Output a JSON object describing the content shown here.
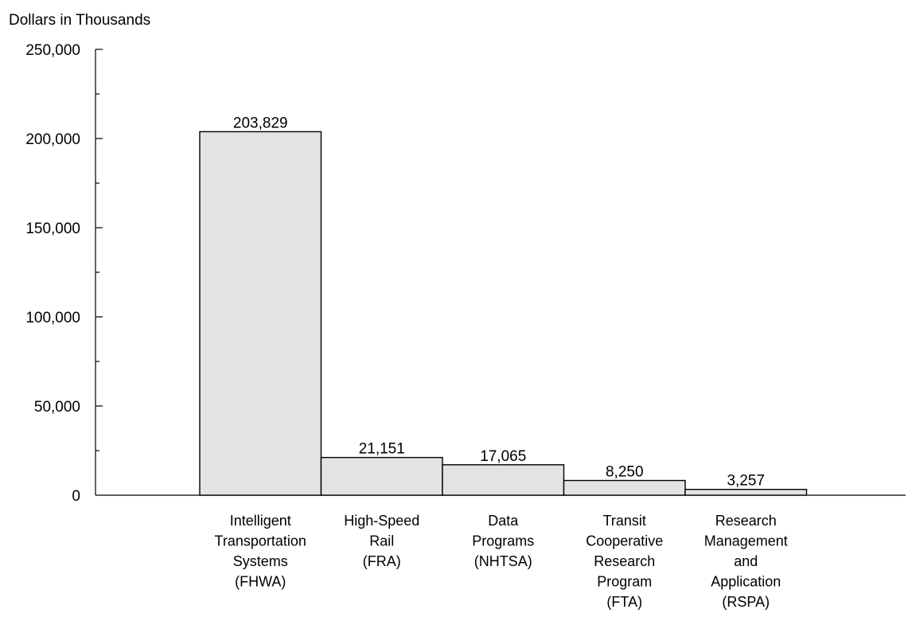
{
  "chart_data": {
    "type": "bar",
    "ylabel": "Dollars in Thousands",
    "ylim": [
      0,
      250000
    ],
    "yticks": [
      0,
      50000,
      100000,
      150000,
      200000,
      250000
    ],
    "ytick_labels": [
      "0",
      "50,000",
      "100,000",
      "150,000",
      "200,000",
      "250,000"
    ],
    "minor_ticks": true,
    "grid": false,
    "categories": [
      [
        "Intelligent",
        "Transportation",
        "Systems",
        "(FHWA)"
      ],
      [
        "High-Speed",
        "Rail",
        "(FRA)"
      ],
      [
        "Data",
        "Programs",
        "(NHTSA)"
      ],
      [
        "Transit",
        "Cooperative",
        "Research",
        "Program",
        "(FTA)"
      ],
      [
        "Research",
        "Management",
        "and",
        "Application",
        "(RSPA)"
      ]
    ],
    "values": [
      203829,
      21151,
      17065,
      8250,
      3257
    ],
    "value_labels": [
      "203,829",
      "21,151",
      "17,065",
      "8,250",
      "3,257"
    ],
    "colors": {
      "bar_fill": "#e3e3e3",
      "bar_stroke": "#000000",
      "axis": "#000000",
      "text": "#000000"
    }
  }
}
